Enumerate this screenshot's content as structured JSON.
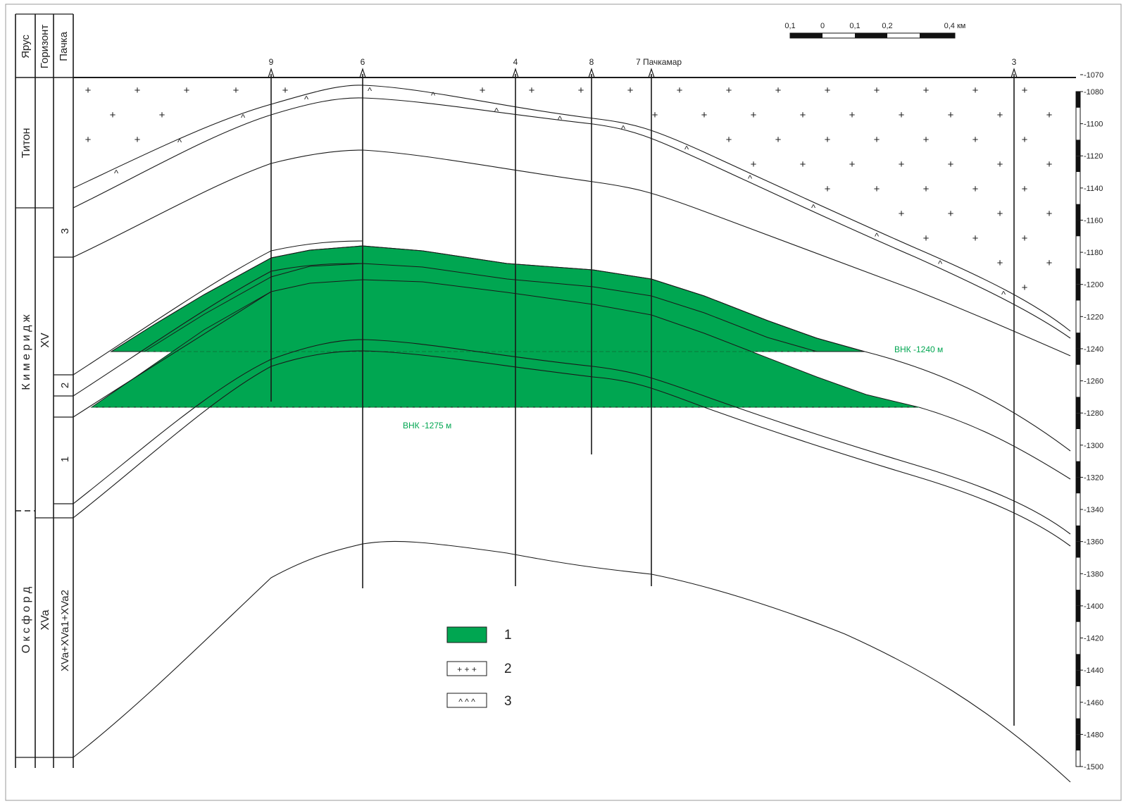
{
  "header": {
    "columns": [
      "Ярус",
      "Горизонт",
      "Пачка"
    ]
  },
  "stages": [
    "Титон",
    "К и м е р и д ж",
    "О к с ф о р д"
  ],
  "horizons": [
    "XV",
    "XVa"
  ],
  "packs": [
    "3",
    "2",
    "1",
    "XVa+XVa1+XVa2"
  ],
  "scale_bar": {
    "labels": [
      "0,1",
      "0",
      "0,1",
      "0,2",
      "0,4 км"
    ]
  },
  "wells": [
    "9",
    "6",
    "4",
    "8",
    "7 Пачкамар",
    "3"
  ],
  "depth_ticks": [
    "-1070",
    "-1080",
    "-1100",
    "-1120",
    "-1140",
    "-1160",
    "-1180",
    "-1200",
    "-1220",
    "-1240",
    "-1260",
    "-1280",
    "-1300",
    "-1320",
    "-1340",
    "-1360",
    "-1380",
    "-1400",
    "-1420",
    "-1440",
    "-1460",
    "-1480",
    "-1500"
  ],
  "contacts": {
    "upper": "ВНК -1240 м",
    "lower": "ВНК -1275 м"
  },
  "legend": [
    {
      "label": "1",
      "pattern": "fill-green"
    },
    {
      "label": "2",
      "pattern": "+ + +"
    },
    {
      "label": "3",
      "pattern": "^ ^ ^"
    }
  ],
  "colors": {
    "oil": "#00a651",
    "line": "#1a1a1a",
    "contact_text": "#00a651"
  }
}
